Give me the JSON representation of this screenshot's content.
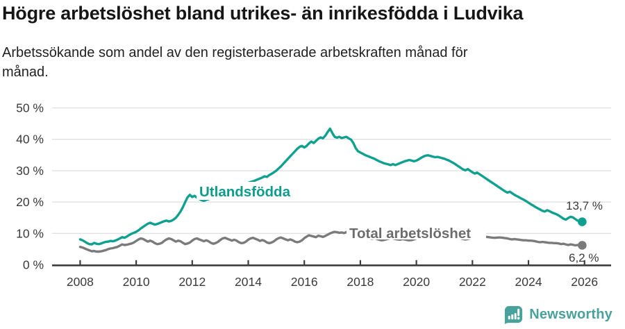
{
  "footer": {
    "brand": "Newsworthy",
    "brand_color": "#48a19a"
  },
  "chart_data": {
    "type": "line",
    "title": "Högre arbetslöshet bland utrikes- än inrikesfödda i Ludvika",
    "subtitle": "Arbetssökande som andel av den registerbaserade arbetskraften månad för månad.",
    "unit": "%",
    "x_tick_years": [
      2008,
      2010,
      2012,
      2014,
      2016,
      2018,
      2020,
      2022,
      2024,
      2026
    ],
    "x_tick_labels": [
      "2008",
      "2010",
      "2012",
      "2014",
      "2016",
      "2018",
      "2020",
      "2022",
      "2024",
      "2026"
    ],
    "y_ticks": [
      0,
      10,
      20,
      30,
      40,
      50
    ],
    "y_tick_labels": [
      "0 %",
      "10 %",
      "20 %",
      "30 %",
      "40 %",
      "50 %"
    ],
    "ylim": [
      0,
      50
    ],
    "xlim": [
      2007.0,
      2027.0
    ],
    "grid": true,
    "legend": "inline-labels",
    "series": [
      {
        "name": "Utlandsfödda",
        "color": "#10a08f",
        "label_color": "#0d9c8c",
        "end_label": "13,7 %",
        "end_value": 13.7,
        "start_year": 2008,
        "interval": "monthly",
        "values": [
          8.1,
          7.8,
          7.4,
          6.9,
          6.6,
          6.5,
          7.0,
          6.7,
          6.6,
          6.8,
          7.1,
          7.3,
          7.4,
          7.6,
          7.5,
          7.7,
          8.0,
          8.4,
          8.8,
          8.6,
          9.0,
          9.5,
          9.9,
          10.2,
          10.5,
          11.0,
          11.6,
          12.1,
          12.6,
          13.1,
          13.4,
          13.1,
          12.8,
          13.0,
          13.3,
          13.6,
          13.9,
          14.1,
          13.8,
          14.0,
          14.4,
          15.0,
          15.9,
          17.0,
          18.4,
          20.0,
          21.5,
          22.3,
          21.6,
          22.0,
          21.4,
          21.0,
          20.6,
          20.4,
          20.7,
          20.9,
          21.2,
          21.5,
          21.9,
          22.3,
          22.7,
          23.0,
          23.2,
          23.5,
          23.8,
          24.0,
          24.3,
          24.6,
          24.9,
          25.2,
          25.5,
          25.8,
          26.1,
          26.4,
          26.6,
          26.9,
          27.2,
          27.5,
          27.8,
          28.2,
          28.0,
          28.6,
          29.0,
          29.5,
          30.0,
          30.7,
          31.4,
          32.2,
          33.0,
          33.8,
          34.6,
          35.4,
          36.2,
          37.0,
          37.6,
          37.9,
          37.4,
          37.9,
          38.7,
          39.3,
          38.8,
          39.5,
          40.2,
          40.6,
          40.3,
          41.2,
          42.3,
          43.4,
          42.0,
          40.8,
          40.5,
          40.8,
          40.4,
          40.6,
          40.8,
          40.3,
          39.9,
          38.8,
          37.2,
          36.2,
          35.8,
          35.4,
          35.0,
          34.7,
          34.4,
          34.1,
          33.8,
          33.4,
          33.0,
          32.7,
          32.4,
          32.2,
          32.0,
          31.8,
          32.1,
          31.8,
          32.1,
          32.4,
          32.7,
          33.0,
          33.2,
          33.4,
          33.2,
          33.0,
          33.2,
          33.6,
          34.1,
          34.5,
          34.8,
          34.9,
          34.7,
          34.5,
          34.3,
          34.4,
          34.2,
          34.0,
          33.8,
          33.5,
          33.2,
          32.8,
          32.4,
          31.9,
          31.4,
          30.9,
          30.4,
          30.1,
          30.5,
          30.0,
          29.5,
          29.1,
          29.4,
          28.9,
          28.4,
          27.9,
          27.4,
          26.9,
          26.4,
          25.9,
          25.4,
          24.9,
          24.4,
          23.9,
          23.4,
          23.0,
          23.3,
          22.8,
          22.3,
          21.9,
          21.5,
          21.1,
          20.7,
          20.3,
          19.8,
          19.3,
          18.9,
          18.4,
          18.0,
          17.6,
          17.2,
          17.0,
          17.4,
          17.1,
          16.7,
          16.4,
          16.1,
          15.7,
          15.2,
          14.7,
          14.4,
          14.9,
          15.3,
          15.1,
          14.6,
          14.1,
          13.9,
          13.7
        ]
      },
      {
        "name": "Total arbetslöshet",
        "color": "#7b7b7b",
        "label_color": "#6c6c6c",
        "end_label": "6,2 %",
        "end_value": 6.2,
        "start_year": 2008,
        "interval": "monthly",
        "values": [
          5.7,
          5.5,
          5.2,
          4.9,
          4.6,
          4.3,
          4.4,
          4.2,
          4.2,
          4.3,
          4.5,
          4.7,
          5.0,
          5.2,
          5.3,
          5.5,
          5.7,
          6.1,
          6.5,
          6.3,
          6.4,
          6.6,
          6.8,
          7.1,
          7.6,
          8.1,
          8.4,
          8.2,
          7.8,
          7.4,
          7.7,
          7.4,
          6.9,
          6.6,
          6.7,
          7.0,
          7.6,
          8.1,
          8.4,
          8.2,
          7.8,
          7.4,
          7.7,
          7.5,
          7.0,
          6.6,
          6.8,
          7.1,
          7.7,
          8.2,
          8.4,
          8.1,
          7.8,
          7.5,
          7.8,
          7.5,
          7.0,
          6.7,
          6.9,
          7.3,
          7.9,
          8.4,
          8.6,
          8.3,
          8.0,
          7.7,
          8.0,
          7.7,
          7.2,
          6.9,
          7.0,
          7.4,
          8.0,
          8.4,
          8.6,
          8.3,
          8.0,
          7.6,
          7.9,
          7.6,
          7.1,
          6.9,
          7.1,
          7.5,
          8.1,
          8.5,
          8.7,
          8.4,
          8.1,
          7.8,
          8.1,
          7.8,
          7.4,
          7.2,
          7.4,
          7.8,
          8.5,
          9.0,
          9.4,
          9.2,
          9.0,
          8.8,
          9.3,
          9.1,
          8.9,
          9.2,
          9.6,
          10.0,
          10.3,
          10.5,
          10.4,
          10.2,
          10.3,
          10.1,
          10.4,
          10.2,
          9.8,
          9.5,
          9.3,
          9.2,
          9.1,
          9.0,
          8.9,
          8.7,
          8.5,
          8.3,
          8.5,
          8.3,
          8.0,
          7.8,
          7.9,
          8.1,
          8.3,
          8.5,
          8.4,
          8.2,
          8.1,
          8.0,
          8.2,
          8.1,
          7.9,
          7.8,
          7.9,
          8.1,
          8.4,
          8.7,
          9.1,
          9.4,
          9.6,
          9.7,
          9.8,
          9.6,
          9.4,
          9.2,
          9.1,
          9.0,
          9.0,
          9.1,
          9.0,
          8.9,
          8.7,
          8.5,
          8.6,
          8.4,
          8.2,
          8.1,
          8.2,
          8.4,
          8.6,
          8.8,
          8.9,
          8.8,
          8.7,
          8.8,
          8.9,
          8.8,
          8.7,
          8.6,
          8.6,
          8.7,
          8.7,
          8.6,
          8.5,
          8.4,
          8.2,
          8.1,
          8.2,
          8.1,
          8.0,
          7.9,
          7.8,
          7.8,
          7.7,
          7.7,
          7.6,
          7.5,
          7.3,
          7.2,
          7.3,
          7.2,
          7.1,
          7.0,
          7.0,
          6.9,
          6.9,
          6.8,
          6.6,
          6.7,
          6.5,
          6.3,
          6.5,
          6.4,
          6.2,
          6.3,
          6.1,
          6.2
        ]
      }
    ]
  }
}
